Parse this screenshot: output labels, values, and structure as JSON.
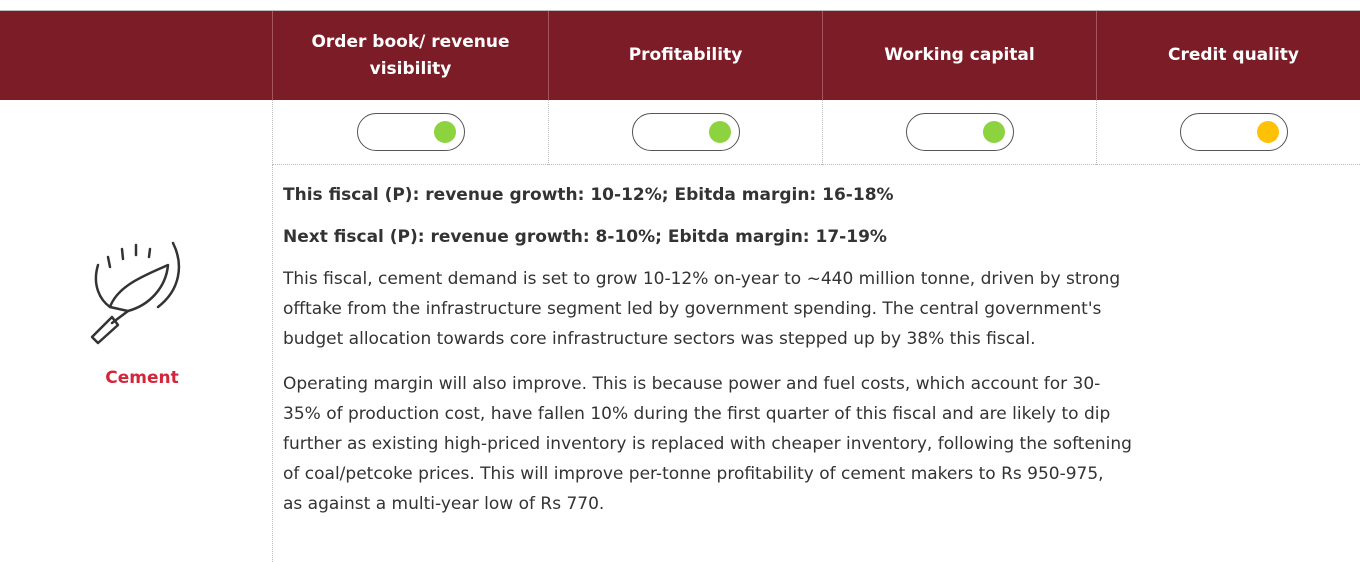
{
  "header": {
    "columns": [
      "Order book/ revenue visibility",
      "Profitability",
      "Working capital",
      "Credit quality"
    ]
  },
  "status": [
    {
      "color": "#8cd33f"
    },
    {
      "color": "#8cd33f"
    },
    {
      "color": "#8cd33f"
    },
    {
      "color": "#ffc107"
    }
  ],
  "sector": {
    "name": "Cement"
  },
  "summary": [
    "This fiscal (P): revenue growth: 10-12%; Ebitda margin: 16-18%",
    "Next fiscal (P): revenue growth: 8-10%; Ebitda margin: 17-19%"
  ],
  "paragraphs": [
    [
      "This fiscal, cement demand is set to grow 10-12% on-year to ~440 million tonne, driven by strong",
      "offtake from the infrastructure segment led by government spending. The central government's",
      "budget allocation towards core infrastructure sectors was stepped up by 38% this fiscal."
    ],
    [
      "Operating margin will also improve. This is because power and fuel costs, which account for 30-",
      "35% of production cost, have fallen 10% during the first quarter of this fiscal and are likely to dip",
      "further as existing high-priced inventory is replaced with cheaper inventory, following the softening",
      "of coal/petcoke prices. This will improve per-tonne profitability of cement makers to Rs 950-975,",
      "as against a multi-year low of Rs 770."
    ]
  ]
}
